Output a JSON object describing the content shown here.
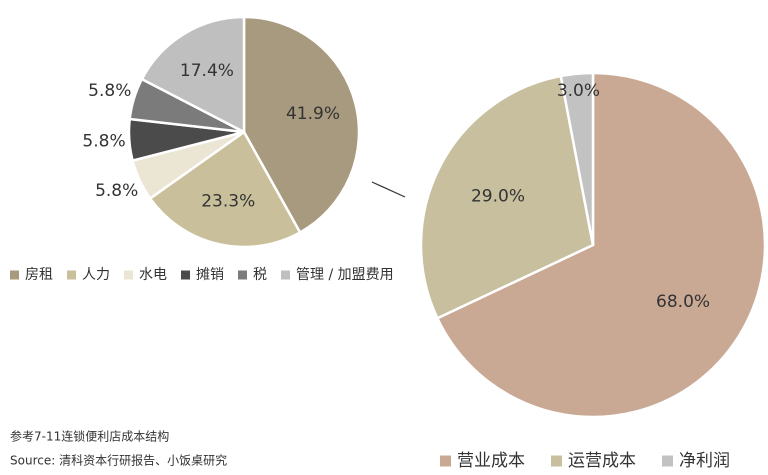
{
  "chart_data": [
    {
      "type": "pie",
      "categories": [
        "房租",
        "人力",
        "水电",
        "摊销",
        "税",
        "管理 / 加盟费用"
      ],
      "values": [
        41.9,
        23.3,
        5.8,
        5.8,
        5.8,
        17.4
      ],
      "value_labels": [
        "41.9%",
        "23.3%",
        "5.8%",
        "5.8%",
        "5.8%",
        "17.4%"
      ],
      "colors": [
        "#a89a7e",
        "#c9c09b",
        "#ebe5d4",
        "#4b4b4b",
        "#7b7b7b",
        "#bfbfbf"
      ]
    },
    {
      "type": "pie",
      "categories": [
        "营业成本",
        "运营成本",
        "净利润"
      ],
      "values": [
        68.0,
        29.0,
        3.0
      ],
      "value_labels": [
        "68.0%",
        "29.0%",
        "3.0%"
      ],
      "colors": [
        "#c9a994",
        "#c8bf9f",
        "#c2c2c2"
      ]
    }
  ],
  "footnotes": [
    "参考7-11连锁便利店成本结构",
    "Source: 清科资本行研报告、小饭桌研究"
  ]
}
